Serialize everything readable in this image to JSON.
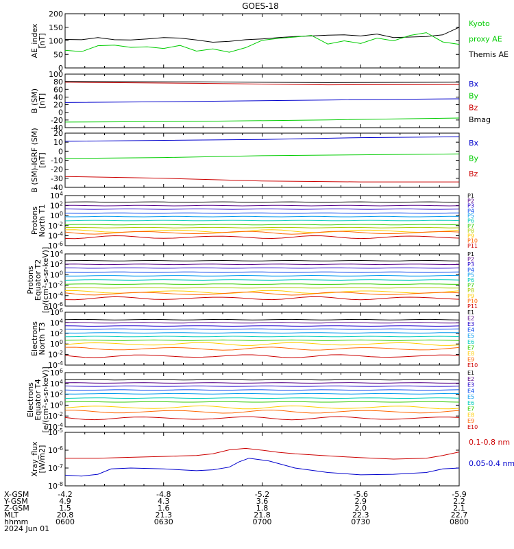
{
  "title": "GOES-18",
  "colors": {
    "black": "#000000",
    "green": "#00cc00",
    "blue": "#0000cc",
    "red": "#cc0000"
  },
  "chart_data": [
    {
      "type": "line",
      "ylabel": [
        "AE_index",
        "[nT]"
      ],
      "yticks": [
        "200",
        "150",
        "100",
        "50",
        "0"
      ],
      "ylim": [
        0,
        200
      ],
      "legend": [
        {
          "text": "Kyoto",
          "color": "#00cc00"
        },
        {
          "text": "proxy AE",
          "color": "#00cc00"
        },
        {
          "text": "Themis AE",
          "color": "#000000"
        }
      ],
      "series": [
        {
          "name": "Themis AE",
          "color": "#000000",
          "x": [
            0,
            5,
            10,
            15,
            20,
            25,
            30,
            35,
            40,
            45,
            50,
            55,
            60,
            65,
            70,
            75,
            80,
            85,
            90,
            95,
            100,
            105,
            110,
            115,
            120
          ],
          "values": [
            105,
            104,
            112,
            104,
            103,
            107,
            112,
            110,
            103,
            95,
            98,
            104,
            107,
            112,
            116,
            118,
            121,
            122,
            118,
            125,
            112,
            114,
            116,
            122,
            150
          ]
        },
        {
          "name": "Kyoto proxy AE",
          "color": "#00cc00",
          "x": [
            0,
            5,
            10,
            15,
            20,
            25,
            30,
            35,
            40,
            45,
            50,
            55,
            60,
            65,
            70,
            75,
            80,
            85,
            90,
            95,
            100,
            105,
            110,
            115,
            120
          ],
          "values": [
            65,
            60,
            82,
            84,
            76,
            78,
            72,
            83,
            62,
            70,
            58,
            75,
            102,
            109,
            114,
            120,
            88,
            100,
            90,
            110,
            100,
            120,
            130,
            96,
            87
          ]
        }
      ]
    },
    {
      "type": "line",
      "ylabel": [
        "B (SM)",
        "[nT]"
      ],
      "yticks": [
        "100",
        "80",
        "60",
        "40",
        "20",
        "0",
        "-20",
        "-40"
      ],
      "ylim": [
        -45,
        100
      ],
      "legend": [
        {
          "text": "Bx",
          "color": "#0000cc"
        },
        {
          "text": "By",
          "color": "#00cc00"
        },
        {
          "text": "Bz",
          "color": "#cc0000"
        },
        {
          "text": "Bmag",
          "color": "#000000"
        }
      ],
      "series": [
        {
          "name": "Bmag",
          "color": "#000000",
          "x": [
            0,
            40,
            80,
            120
          ],
          "values": [
            80,
            79,
            77,
            78
          ]
        },
        {
          "name": "Bz",
          "color": "#cc0000",
          "x": [
            0,
            40,
            80,
            120
          ],
          "values": [
            78,
            75,
            71,
            72
          ]
        },
        {
          "name": "Bx",
          "color": "#0000cc",
          "x": [
            0,
            40,
            80,
            120
          ],
          "values": [
            23,
            26,
            30,
            33
          ]
        },
        {
          "name": "By",
          "color": "#00cc00",
          "x": [
            0,
            40,
            80,
            120
          ],
          "values": [
            -30,
            -28,
            -24,
            -19
          ]
        }
      ]
    },
    {
      "type": "line",
      "ylabel": [
        "B (SM)-IGRF (SM)",
        "[nT]"
      ],
      "yticks": [
        "20",
        "10",
        "0",
        "-10",
        "-20",
        "-30",
        "-40"
      ],
      "ylim": [
        -40,
        20
      ],
      "legend": [
        {
          "text": "Bx",
          "color": "#0000cc"
        },
        {
          "text": "By",
          "color": "#00cc00"
        },
        {
          "text": "Bz",
          "color": "#cc0000"
        }
      ],
      "series": [
        {
          "name": "Bx",
          "color": "#0000cc",
          "x": [
            0,
            30,
            60,
            90,
            120
          ],
          "values": [
            11,
            12,
            13,
            15,
            16
          ]
        },
        {
          "name": "By",
          "color": "#00cc00",
          "x": [
            0,
            30,
            60,
            90,
            120
          ],
          "values": [
            -8,
            -7,
            -5,
            -4,
            -3
          ]
        },
        {
          "name": "Bz",
          "color": "#cc0000",
          "x": [
            0,
            30,
            60,
            90,
            120
          ],
          "values": [
            -28,
            -30,
            -33,
            -34,
            -34
          ]
        }
      ]
    },
    {
      "type": "line",
      "ylog": true,
      "ylabel": [
        "Protons",
        "North T1"
      ],
      "yticks": [
        {
          "b": "10",
          "e": "4"
        },
        {
          "b": "10",
          "e": "2"
        },
        {
          "b": "10",
          "e": "0"
        },
        {
          "b": "10",
          "e": "-2"
        },
        {
          "b": "10",
          "e": "-4"
        },
        {
          "b": "10",
          "e": "-6"
        }
      ],
      "ylim": [
        -6,
        4
      ],
      "channels": [
        "P1",
        "P2",
        "P3",
        "P4",
        "P5",
        "P6",
        "P7",
        "P8",
        "P9",
        "P10",
        "P11"
      ],
      "channel_colors": [
        "#000000",
        "#550088",
        "#2200cc",
        "#0044ee",
        "#0099ee",
        "#00ccbb",
        "#33cc00",
        "#aacc00",
        "#ffcc00",
        "#ff6600",
        "#cc0000"
      ],
      "levels": [
        2.7,
        2.0,
        1.3,
        0.5,
        -0.2,
        -1.0,
        -1.8,
        -2.4,
        -3.1,
        -3.4,
        -4.3
      ]
    },
    {
      "type": "line",
      "ylog": true,
      "ylabel": [
        "Protons",
        "Equator T2",
        "[p/(cm²-s-sr-keV)]"
      ],
      "yticks": [
        {
          "b": "10",
          "e": "4"
        },
        {
          "b": "10",
          "e": "2"
        },
        {
          "b": "10",
          "e": "0"
        },
        {
          "b": "10",
          "e": "-2"
        },
        {
          "b": "10",
          "e": "-4"
        },
        {
          "b": "10",
          "e": "-6"
        }
      ],
      "ylim": [
        -6,
        4
      ],
      "channels": [
        "P1",
        "P2",
        "P3",
        "P4",
        "P5",
        "P6",
        "P7",
        "P8",
        "P9",
        "P10",
        "P11"
      ],
      "channel_colors": [
        "#000000",
        "#550088",
        "#2200cc",
        "#0044ee",
        "#0099ee",
        "#00ccbb",
        "#33cc00",
        "#aacc00",
        "#ffcc00",
        "#ff6600",
        "#cc0000"
      ],
      "levels": [
        2.7,
        2.0,
        1.3,
        0.5,
        -0.2,
        -1.0,
        -1.8,
        -2.5,
        -3.3,
        -3.6,
        -4.5
      ]
    },
    {
      "type": "line",
      "ylog": true,
      "ylabel": [
        "Electrons",
        "North T3"
      ],
      "yticks": [
        {
          "b": "10",
          "e": "6"
        },
        {
          "b": "10",
          "e": "4"
        },
        {
          "b": "10",
          "e": "2"
        },
        {
          "b": "10",
          "e": "0"
        },
        {
          "b": "10",
          "e": "-2"
        },
        {
          "b": "10",
          "e": "-4"
        }
      ],
      "ylim": [
        -4,
        6
      ],
      "channels": [
        "E1",
        "E2",
        "E3",
        "E4",
        "E5",
        "E6",
        "E7",
        "E8",
        "E9",
        "E10"
      ],
      "channel_colors": [
        "#000000",
        "#550088",
        "#2200cc",
        "#0044ee",
        "#0099ee",
        "#00ccbb",
        "#33cc00",
        "#ffcc00",
        "#ff6600",
        "#cc0000"
      ],
      "levels": [
        4.6,
        4.0,
        3.4,
        2.8,
        2.1,
        1.4,
        0.7,
        0.0,
        -0.9,
        -2.3
      ]
    },
    {
      "type": "line",
      "ylog": true,
      "ylabel": [
        "Electrons",
        "Equator T4",
        "[e/(cm²-s-sr-keV)]"
      ],
      "yticks": [
        {
          "b": "10",
          "e": "6"
        },
        {
          "b": "10",
          "e": "4"
        },
        {
          "b": "10",
          "e": "2"
        },
        {
          "b": "10",
          "e": "0"
        },
        {
          "b": "10",
          "e": "-2"
        },
        {
          "b": "10",
          "e": "-4"
        }
      ],
      "ylim": [
        -4,
        6
      ],
      "channels": [
        "E1",
        "E2",
        "E3",
        "E4",
        "E5",
        "E6",
        "E7",
        "E8",
        "E9",
        "E10"
      ],
      "channel_colors": [
        "#000000",
        "#550088",
        "#2200cc",
        "#0044ee",
        "#0099ee",
        "#00ccbb",
        "#33cc00",
        "#ffcc00",
        "#ff6600",
        "#cc0000"
      ],
      "levels": [
        4.7,
        4.1,
        3.5,
        2.8,
        2.1,
        1.3,
        0.6,
        -0.4,
        -1.2,
        -2.4
      ]
    },
    {
      "type": "line",
      "ylog": true,
      "ylabel": [
        "Xray_flux",
        "[W/m2]"
      ],
      "yticks": [
        {
          "b": "10",
          "e": "-5"
        },
        {
          "b": "10",
          "e": "-6"
        },
        {
          "b": "10",
          "e": "-7"
        },
        {
          "b": "10",
          "e": "-8"
        }
      ],
      "ylim": [
        -8,
        -5
      ],
      "legend": [
        {
          "text": "0.1-0.8 nm",
          "color": "#cc0000"
        },
        {
          "text": "0.05-0.4 nm",
          "color": "#0000cc"
        }
      ],
      "series": [
        {
          "name": "0.1-0.8 nm",
          "color": "#cc0000",
          "x": [
            0,
            10,
            20,
            30,
            40,
            45,
            50,
            55,
            60,
            65,
            70,
            80,
            90,
            100,
            110,
            115,
            120
          ],
          "values": [
            -6.45,
            -6.45,
            -6.4,
            -6.35,
            -6.3,
            -6.2,
            -5.98,
            -5.9,
            -6.0,
            -6.12,
            -6.2,
            -6.32,
            -6.42,
            -6.5,
            -6.45,
            -6.3,
            -6.1
          ]
        },
        {
          "name": "0.05-0.4 nm",
          "color": "#0000cc",
          "x": [
            0,
            5,
            10,
            14,
            20,
            30,
            40,
            45,
            50,
            53,
            56,
            62,
            70,
            80,
            90,
            100,
            110,
            115,
            120
          ],
          "values": [
            -7.4,
            -7.45,
            -7.35,
            -7.05,
            -7.0,
            -7.05,
            -7.15,
            -7.1,
            -6.95,
            -6.65,
            -6.45,
            -6.6,
            -7.0,
            -7.25,
            -7.38,
            -7.35,
            -7.25,
            -7.05,
            -7.0
          ]
        }
      ]
    }
  ],
  "footer": {
    "labels": [
      "X-GSM",
      "Y-GSM",
      "Z-GSM",
      "MLT",
      "hhmm",
      "2024 Jun 01"
    ],
    "columns": [
      {
        "x_min": 0,
        "rows": [
          "-4.2",
          "4.9",
          "1.5",
          "20.8",
          "0600"
        ]
      },
      {
        "x_min": 30,
        "rows": [
          "-4.8",
          "4.3",
          "1.6",
          "21.3",
          "0630"
        ]
      },
      {
        "x_min": 60,
        "rows": [
          "-5.2",
          "3.6",
          "1.8",
          "21.8",
          "0700"
        ]
      },
      {
        "x_min": 90,
        "rows": [
          "-5.6",
          "2.9",
          "2.0",
          "22.3",
          "0730"
        ]
      },
      {
        "x_min": 120,
        "rows": [
          "-5.9",
          "2.2",
          "2.1",
          "22.7",
          "0800"
        ]
      }
    ]
  }
}
